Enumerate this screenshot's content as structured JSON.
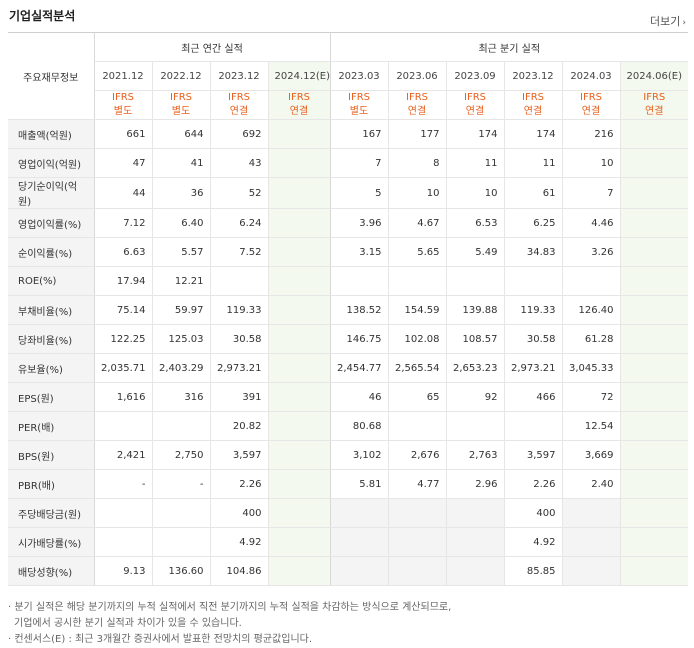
{
  "title": "기업실적분석",
  "more_label": "더보기",
  "row_header": "주요재무정보",
  "group_annual": "최근 연간 실적",
  "group_quarter": "최근 분기 실적",
  "periods": [
    "2021.12",
    "2022.12",
    "2023.12",
    "2024.12(E)",
    "2023.03",
    "2023.06",
    "2023.09",
    "2023.12",
    "2024.03",
    "2024.06(E)"
  ],
  "ifrs": [
    [
      "IFRS",
      "별도"
    ],
    [
      "IFRS",
      "별도"
    ],
    [
      "IFRS",
      "연결"
    ],
    [
      "IFRS",
      "연결"
    ],
    [
      "IFRS",
      "별도"
    ],
    [
      "IFRS",
      "연결"
    ],
    [
      "IFRS",
      "연결"
    ],
    [
      "IFRS",
      "연결"
    ],
    [
      "IFRS",
      "연결"
    ],
    [
      "IFRS",
      "연결"
    ]
  ],
  "rows": [
    {
      "label": "매출액(억원)",
      "values": [
        "661",
        "644",
        "692",
        "",
        "167",
        "177",
        "174",
        "174",
        "216",
        ""
      ]
    },
    {
      "label": "영업이익(억원)",
      "values": [
        "47",
        "41",
        "43",
        "",
        "7",
        "8",
        "11",
        "11",
        "10",
        ""
      ]
    },
    {
      "label": "당기순이익(억원)",
      "values": [
        "44",
        "36",
        "52",
        "",
        "5",
        "10",
        "10",
        "61",
        "7",
        ""
      ]
    },
    {
      "label": "영업이익률(%)",
      "values": [
        "7.12",
        "6.40",
        "6.24",
        "",
        "3.96",
        "4.67",
        "6.53",
        "6.25",
        "4.46",
        ""
      ]
    },
    {
      "label": "순이익률(%)",
      "values": [
        "6.63",
        "5.57",
        "7.52",
        "",
        "3.15",
        "5.65",
        "5.49",
        "34.83",
        "3.26",
        ""
      ]
    },
    {
      "label": "ROE(%)",
      "values": [
        "17.94",
        "12.21",
        "",
        "",
        "",
        "",
        "",
        "",
        "",
        ""
      ]
    },
    {
      "label": "부채비율(%)",
      "values": [
        "75.14",
        "59.97",
        "119.33",
        "",
        "138.52",
        "154.59",
        "139.88",
        "119.33",
        "126.40",
        ""
      ]
    },
    {
      "label": "당좌비율(%)",
      "values": [
        "122.25",
        "125.03",
        "30.58",
        "",
        "146.75",
        "102.08",
        "108.57",
        "30.58",
        "61.28",
        ""
      ]
    },
    {
      "label": "유보율(%)",
      "values": [
        "2,035.71",
        "2,403.29",
        "2,973.21",
        "",
        "2,454.77",
        "2,565.54",
        "2,653.23",
        "2,973.21",
        "3,045.33",
        ""
      ]
    },
    {
      "label": "EPS(원)",
      "values": [
        "1,616",
        "316",
        "391",
        "",
        "46",
        "65",
        "92",
        "466",
        "72",
        ""
      ]
    },
    {
      "label": "PER(배)",
      "values": [
        "",
        "",
        "20.82",
        "",
        "80.68",
        "",
        "",
        "",
        "12.54",
        ""
      ]
    },
    {
      "label": "BPS(원)",
      "values": [
        "2,421",
        "2,750",
        "3,597",
        "",
        "3,102",
        "2,676",
        "2,763",
        "3,597",
        "3,669",
        ""
      ]
    },
    {
      "label": "PBR(배)",
      "values": [
        "-",
        "-",
        "2.26",
        "",
        "5.81",
        "4.77",
        "2.96",
        "2.26",
        "2.40",
        ""
      ]
    },
    {
      "label": "주당배당금(원)",
      "values": [
        "",
        "",
        "400",
        "",
        "",
        "",
        "",
        "400",
        "",
        ""
      ]
    },
    {
      "label": "시가배당률(%)",
      "values": [
        "",
        "",
        "4.92",
        "",
        "",
        "",
        "",
        "4.92",
        "",
        ""
      ]
    },
    {
      "label": "배당성향(%)",
      "values": [
        "9.13",
        "136.60",
        "104.86",
        "",
        "",
        "",
        "",
        "85.85",
        "",
        ""
      ]
    }
  ],
  "notes": [
    "· 분기 실적은 해당 분기까지의 누적 실적에서 직전 분기까지의 누적 실적을 차감하는 방식으로 계산되므로,",
    "  기업에서 공시한 분기 실적과 차이가 있을 수 있습니다.",
    "· 컨센서스(E) : 최근 3개월간 증권사에서 발표한 전망치의 평균값입니다."
  ]
}
